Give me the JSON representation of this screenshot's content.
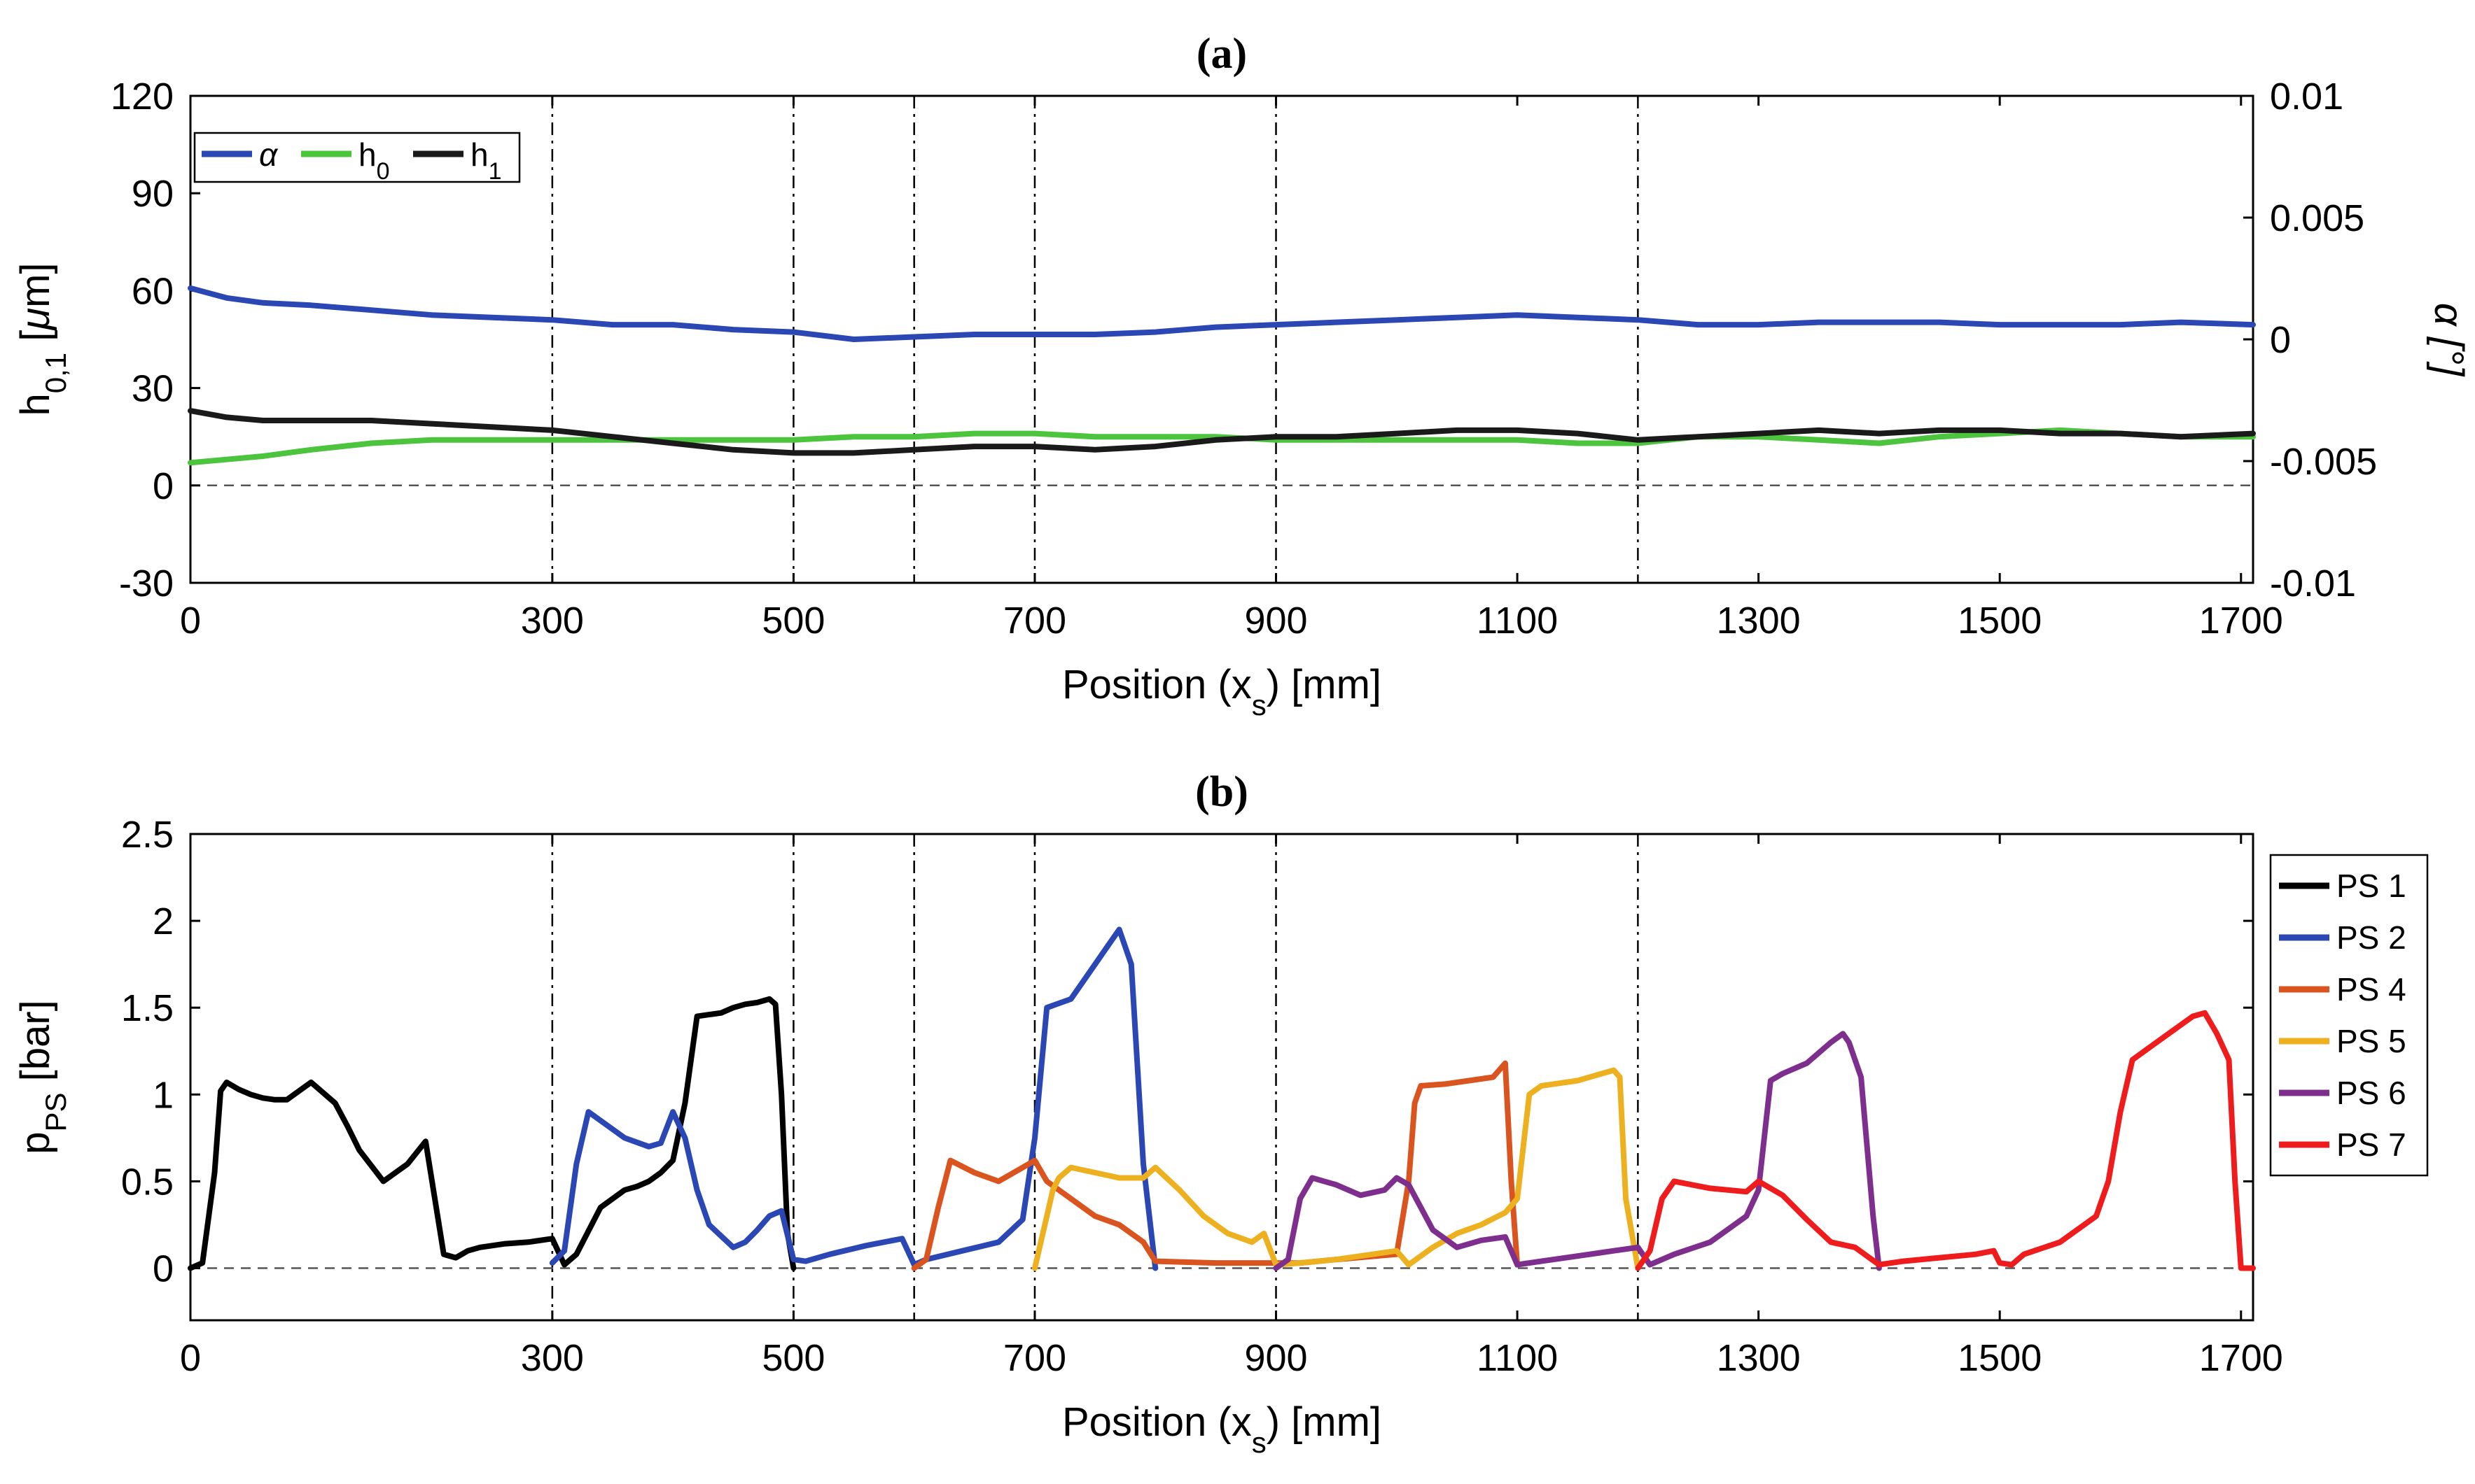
{
  "chart_data": [
    {
      "panel": "(a)",
      "type": "line",
      "title": "(a)",
      "xlabel": "Position (x_s) [mm]",
      "xlabel_parts": {
        "main": "Position (x",
        "sub": "s",
        "tail": ") [mm]"
      },
      "ylabel_left": "h_{0,1} [μm]",
      "ylabel_left_parts": {
        "main": "h",
        "sub": "0,1",
        "tail": " [",
        "greek": "μ",
        "unit": "m]"
      },
      "ylabel_right": "α [°]",
      "xlim": [
        0,
        1710
      ],
      "ylim_left": [
        -30,
        120
      ],
      "ylim_right": [
        -0.01,
        0.01
      ],
      "x_ticks": [
        0,
        300,
        500,
        700,
        900,
        1100,
        1300,
        1500,
        1700
      ],
      "y_ticks_left": [
        -30,
        0,
        30,
        60,
        90,
        120
      ],
      "y_ticks_left_labels": [
        "-30",
        "0",
        "30",
        "60",
        "90",
        "120"
      ],
      "y_ticks_right": [
        -0.01,
        -0.005,
        0,
        0.005,
        0.01
      ],
      "y_ticks_right_labels": [
        "-0.01",
        "-0.005",
        "0",
        "0.005",
        "0.01"
      ],
      "vlines": [
        0,
        300,
        500,
        600,
        700,
        900,
        1200
      ],
      "hline": 0,
      "legend": [
        {
          "label": "α",
          "color": "#2a47b3",
          "sub": ""
        },
        {
          "label": "h",
          "color": "#4cc43e",
          "sub": "0"
        },
        {
          "label": "h",
          "color": "#1a1a1a",
          "sub": "1"
        }
      ],
      "series": [
        {
          "name": "α",
          "axis": "right",
          "color": "#2a47b3",
          "x": [
            0,
            30,
            60,
            100,
            150,
            200,
            250,
            300,
            350,
            400,
            450,
            500,
            550,
            600,
            650,
            700,
            750,
            800,
            850,
            900,
            950,
            1000,
            1050,
            1100,
            1150,
            1200,
            1250,
            1300,
            1350,
            1400,
            1450,
            1500,
            1550,
            1600,
            1650,
            1710
          ],
          "y": [
            0.0021,
            0.0017,
            0.0015,
            0.0014,
            0.0012,
            0.001,
            0.0009,
            0.0008,
            0.0006,
            0.0006,
            0.0004,
            0.0003,
            0.0,
            0.0001,
            0.0002,
            0.0002,
            0.0002,
            0.0003,
            0.0005,
            0.0006,
            0.0007,
            0.0008,
            0.0009,
            0.001,
            0.0009,
            0.0008,
            0.0006,
            0.0006,
            0.0007,
            0.0007,
            0.0007,
            0.0006,
            0.0006,
            0.0006,
            0.0007,
            0.0006
          ]
        },
        {
          "name": "h_0",
          "axis": "left",
          "color": "#4cc43e",
          "x": [
            0,
            30,
            60,
            100,
            150,
            200,
            250,
            300,
            350,
            400,
            450,
            500,
            550,
            600,
            650,
            700,
            750,
            800,
            850,
            900,
            950,
            1000,
            1050,
            1100,
            1150,
            1200,
            1250,
            1300,
            1350,
            1400,
            1450,
            1500,
            1550,
            1600,
            1650,
            1710
          ],
          "y": [
            7,
            8,
            9,
            11,
            13,
            14,
            14,
            14,
            14,
            14,
            14,
            14,
            15,
            15,
            16,
            16,
            15,
            15,
            15,
            14,
            14,
            14,
            14,
            14,
            13,
            13,
            15,
            15,
            14,
            13,
            15,
            16,
            17,
            16,
            15,
            15
          ]
        },
        {
          "name": "h_1",
          "axis": "left",
          "color": "#1a1a1a",
          "x": [
            0,
            30,
            60,
            100,
            150,
            200,
            250,
            300,
            350,
            400,
            450,
            500,
            550,
            600,
            650,
            700,
            750,
            800,
            850,
            900,
            950,
            1000,
            1050,
            1100,
            1150,
            1200,
            1250,
            1300,
            1350,
            1400,
            1450,
            1500,
            1550,
            1600,
            1650,
            1710
          ],
          "y": [
            23,
            21,
            20,
            20,
            20,
            19,
            18,
            17,
            15,
            13,
            11,
            10,
            10,
            11,
            12,
            12,
            11,
            12,
            14,
            15,
            15,
            16,
            17,
            17,
            16,
            14,
            15,
            16,
            17,
            16,
            17,
            17,
            16,
            16,
            15,
            16
          ]
        }
      ]
    },
    {
      "panel": "(b)",
      "type": "line",
      "title": "(b)",
      "xlabel": "Position (x_s) [mm]",
      "xlabel_parts": {
        "main": "Position (x",
        "sub": "s",
        "tail": ") [mm]"
      },
      "ylabel": "p_PS [bar]",
      "ylabel_parts": {
        "main": "p",
        "sub": "PS",
        "tail": " [bar]"
      },
      "xlim": [
        0,
        1710
      ],
      "ylim": [
        -0.3,
        2.5
      ],
      "x_ticks": [
        0,
        300,
        500,
        700,
        900,
        1100,
        1300,
        1500,
        1700
      ],
      "y_ticks": [
        0,
        0.5,
        1,
        1.5,
        2,
        2.5
      ],
      "y_ticks_labels": [
        "0",
        "0.5",
        "1",
        "1.5",
        "2",
        "2.5"
      ],
      "vlines": [
        0,
        300,
        500,
        600,
        700,
        900,
        1200
      ],
      "hline": 0,
      "series": [
        {
          "name": "PS 1",
          "color": "#000000",
          "x": [
            0,
            10,
            20,
            25,
            30,
            40,
            50,
            60,
            70,
            80,
            100,
            120,
            130,
            140,
            160,
            180,
            195,
            210,
            220,
            230,
            240,
            250,
            260,
            280,
            300,
            310,
            320,
            340,
            360,
            370,
            380,
            390,
            400,
            410,
            420,
            430,
            440,
            450,
            460,
            470,
            480,
            485,
            490,
            495,
            500
          ],
          "y": [
            0,
            0.03,
            0.55,
            1.02,
            1.07,
            1.03,
            1.0,
            0.98,
            0.97,
            0.97,
            1.07,
            0.95,
            0.82,
            0.68,
            0.5,
            0.6,
            0.73,
            0.08,
            0.06,
            0.1,
            0.12,
            0.13,
            0.14,
            0.15,
            0.17,
            0.02,
            0.08,
            0.35,
            0.45,
            0.47,
            0.5,
            0.55,
            0.62,
            0.95,
            1.45,
            1.46,
            1.47,
            1.5,
            1.52,
            1.53,
            1.55,
            1.52,
            1.0,
            0.2,
            0.0
          ]
        },
        {
          "name": "PS 2",
          "color": "#2a47b3",
          "x": [
            300,
            310,
            320,
            330,
            340,
            360,
            380,
            390,
            400,
            410,
            420,
            430,
            450,
            460,
            470,
            480,
            490,
            500,
            510,
            530,
            560,
            590,
            600,
            610,
            640,
            670,
            690,
            700,
            710,
            730,
            750,
            760,
            770,
            780,
            790,
            800
          ],
          "y": [
            0.03,
            0.1,
            0.6,
            0.9,
            0.85,
            0.75,
            0.7,
            0.72,
            0.9,
            0.75,
            0.45,
            0.25,
            0.12,
            0.15,
            0.22,
            0.3,
            0.33,
            0.05,
            0.04,
            0.08,
            0.13,
            0.17,
            0.02,
            0.05,
            0.1,
            0.15,
            0.28,
            0.75,
            1.5,
            1.55,
            1.75,
            1.85,
            1.95,
            1.75,
            0.6,
            0.0
          ]
        },
        {
          "name": "PS 4",
          "color": "#d9541e",
          "x": [
            600,
            610,
            620,
            630,
            650,
            670,
            690,
            700,
            710,
            730,
            750,
            770,
            790,
            800,
            850,
            900,
            920,
            950,
            1000,
            1010,
            1015,
            1020,
            1040,
            1060,
            1080,
            1090,
            1095,
            1100
          ],
          "y": [
            0.0,
            0.05,
            0.35,
            0.62,
            0.55,
            0.5,
            0.58,
            0.62,
            0.5,
            0.4,
            0.3,
            0.25,
            0.15,
            0.04,
            0.03,
            0.03,
            0.03,
            0.05,
            0.08,
            0.5,
            0.95,
            1.05,
            1.06,
            1.08,
            1.1,
            1.18,
            0.5,
            0.02
          ]
        },
        {
          "name": "PS 5",
          "color": "#edb120",
          "x": [
            700,
            710,
            715,
            720,
            730,
            750,
            770,
            790,
            800,
            820,
            840,
            860,
            880,
            890,
            900,
            920,
            950,
            980,
            1000,
            1010,
            1030,
            1050,
            1070,
            1090,
            1100,
            1110,
            1120,
            1150,
            1170,
            1180,
            1185,
            1190,
            1200
          ],
          "y": [
            0.0,
            0.3,
            0.45,
            0.52,
            0.58,
            0.55,
            0.52,
            0.52,
            0.58,
            0.45,
            0.3,
            0.2,
            0.15,
            0.2,
            0.02,
            0.03,
            0.05,
            0.08,
            0.1,
            0.02,
            0.12,
            0.2,
            0.25,
            0.32,
            0.4,
            1.0,
            1.05,
            1.08,
            1.12,
            1.14,
            1.1,
            0.4,
            0.0
          ]
        },
        {
          "name": "PS 6",
          "color": "#7e2f8e",
          "x": [
            900,
            910,
            920,
            930,
            950,
            970,
            990,
            1000,
            1010,
            1020,
            1030,
            1050,
            1070,
            1090,
            1100,
            1120,
            1150,
            1180,
            1200,
            1210,
            1230,
            1260,
            1290,
            1300,
            1310,
            1320,
            1340,
            1360,
            1370,
            1375,
            1385,
            1395,
            1400
          ],
          "y": [
            0.0,
            0.05,
            0.4,
            0.52,
            0.48,
            0.42,
            0.45,
            0.52,
            0.48,
            0.35,
            0.22,
            0.12,
            0.16,
            0.18,
            0.02,
            0.04,
            0.07,
            0.1,
            0.12,
            0.02,
            0.08,
            0.15,
            0.3,
            0.45,
            1.08,
            1.12,
            1.18,
            1.3,
            1.35,
            1.3,
            1.1,
            0.3,
            0.0
          ]
        },
        {
          "name": "PS 7",
          "color": "#ee1c1c",
          "x": [
            1200,
            1210,
            1220,
            1230,
            1260,
            1290,
            1300,
            1320,
            1340,
            1360,
            1380,
            1400,
            1420,
            1450,
            1480,
            1495,
            1500,
            1510,
            1520,
            1550,
            1580,
            1590,
            1600,
            1610,
            1620,
            1640,
            1660,
            1670,
            1680,
            1690,
            1695,
            1700,
            1710
          ],
          "y": [
            0.0,
            0.1,
            0.4,
            0.5,
            0.46,
            0.44,
            0.5,
            0.42,
            0.28,
            0.15,
            0.12,
            0.02,
            0.04,
            0.06,
            0.08,
            0.1,
            0.03,
            0.02,
            0.08,
            0.15,
            0.3,
            0.5,
            0.9,
            1.2,
            1.25,
            1.35,
            1.45,
            1.47,
            1.35,
            1.2,
            0.5,
            0.0,
            0.0
          ]
        }
      ]
    }
  ]
}
